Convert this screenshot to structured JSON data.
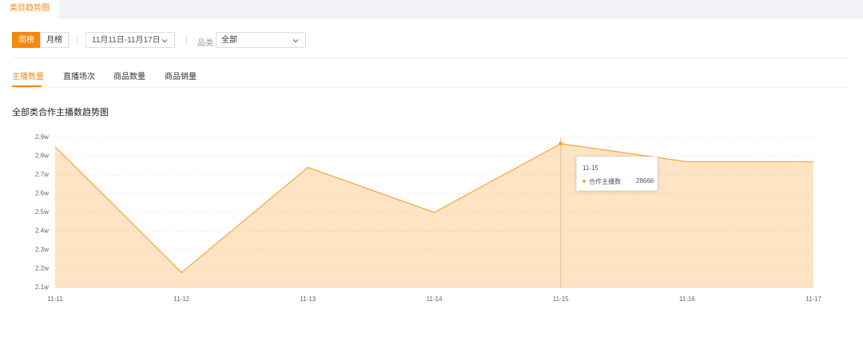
{
  "tabs": [
    "类目趋势图"
  ],
  "filters": {
    "period": [
      "周榜",
      "月榜"
    ],
    "date": "11月11日-11月17日",
    "category_label": "品类",
    "category_value": "全部"
  },
  "metric_tabs": [
    "主播数量",
    "直播场次",
    "商品数量",
    "商品销量"
  ],
  "chart_data": {
    "type": "line",
    "title": "全部类合作主播数趋势图",
    "categories": [
      "11-11",
      "11-12",
      "11-13",
      "11-14",
      "11-15",
      "11-16",
      "11-17"
    ],
    "series": [
      {
        "name": "合作主播数",
        "color": "#f7a53c",
        "values": [
          28500,
          21800,
          27400,
          25000,
          28666,
          27700,
          27700
        ]
      }
    ],
    "ylim": [
      21000,
      29000
    ],
    "yticks": [
      {
        "value": 21000,
        "label": "2.1w"
      },
      {
        "value": 22000,
        "label": "2.2w"
      },
      {
        "value": 23000,
        "label": "2.3w"
      },
      {
        "value": 24000,
        "label": "2.4w"
      },
      {
        "value": 25000,
        "label": "2.5w"
      },
      {
        "value": 26000,
        "label": "2.6w"
      },
      {
        "value": 27000,
        "label": "2.7w"
      },
      {
        "value": 28000,
        "label": "2.8w"
      },
      {
        "value": 29000,
        "label": "2.9w"
      }
    ],
    "grid": true,
    "area": true
  }
}
